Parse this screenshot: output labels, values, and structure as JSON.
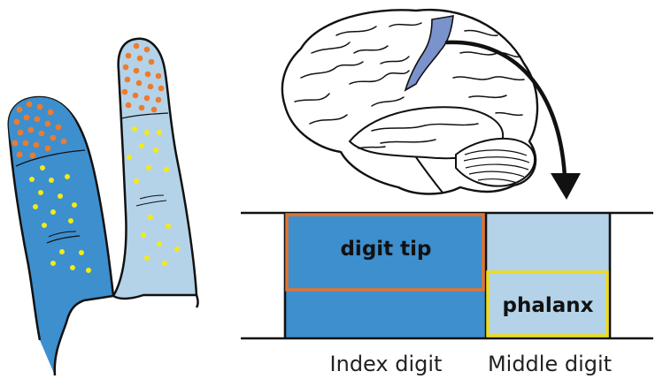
{
  "labels": {
    "digit_tip": "digit tip",
    "phalanx": "phalanx",
    "index_digit": "Index digit",
    "middle_digit": "Middle digit"
  },
  "icons": {
    "index_finger": "finger-icon",
    "middle_finger": "finger-icon",
    "brain": "brain-icon",
    "arrow": "curved-arrow-icon"
  },
  "colors": {
    "index_fill": "#3d8fce",
    "middle_fill": "#b4d3e8",
    "brain_highlight": "#7b93cc",
    "digit_tip_border": "#e2742f",
    "phalanx_border": "#eedc1f",
    "tip_dots": "#ec7b2e",
    "phalanx_dots": "#f4ea16",
    "outline": "#111111"
  }
}
